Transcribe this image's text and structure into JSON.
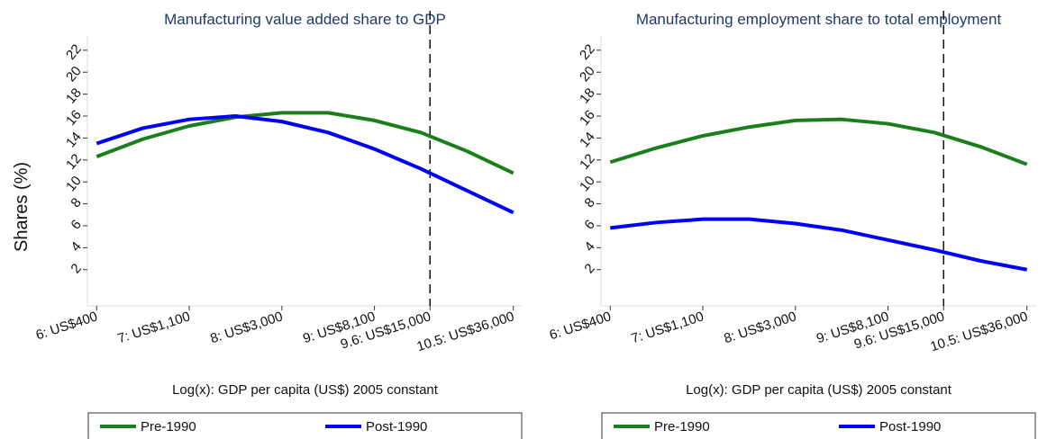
{
  "y_label": "Shares (%)",
  "chart_data": [
    {
      "type": "line",
      "title": "Manufacturing value added share to GDP",
      "xlabel": "Log(x): GDP per capita (US$) 2005 constant",
      "x": [
        6,
        6.5,
        7,
        7.5,
        8,
        8.5,
        9,
        9.5,
        10,
        10.5
      ],
      "series": [
        {
          "name": "Pre-1990",
          "color": "#1a7f1a",
          "values": [
            12.3,
            13.9,
            15.1,
            15.9,
            16.3,
            16.3,
            15.6,
            14.5,
            12.8,
            10.8
          ]
        },
        {
          "name": "Post-1990",
          "color": "#0000ff",
          "values": [
            13.5,
            14.9,
            15.7,
            16.0,
            15.5,
            14.5,
            13.0,
            11.2,
            9.2,
            7.2
          ]
        }
      ],
      "xlim": [
        5.9,
        10.6
      ],
      "ylim": [
        -1.3,
        23.3
      ],
      "xticks": [
        {
          "value": 6,
          "label": "6: US$400"
        },
        {
          "value": 7,
          "label": "7: US$1,100"
        },
        {
          "value": 8,
          "label": "8: US$3,000"
        },
        {
          "value": 9,
          "label": "9: US$8,100"
        },
        {
          "value": 9.6,
          "label": "9.6: US$15,000"
        },
        {
          "value": 10.5,
          "label": "10.5: US$36,000"
        }
      ],
      "yticks": [
        2,
        4,
        6,
        8,
        10,
        12,
        14,
        16,
        18,
        20,
        22
      ],
      "vline": 9.6,
      "legend": "bottom"
    },
    {
      "type": "line",
      "title": "Manufacturing employment share to total employment",
      "xlabel": "Log(x): GDP per capita (US$) 2005 constant",
      "x": [
        6,
        6.5,
        7,
        7.5,
        8,
        8.5,
        9,
        9.5,
        10,
        10.5
      ],
      "series": [
        {
          "name": "Pre-1990",
          "color": "#1a7f1a",
          "values": [
            11.8,
            13.1,
            14.2,
            15.0,
            15.6,
            15.7,
            15.3,
            14.5,
            13.2,
            11.6
          ]
        },
        {
          "name": "Post-1990",
          "color": "#0000ff",
          "values": [
            5.8,
            6.3,
            6.6,
            6.6,
            6.2,
            5.6,
            4.7,
            3.8,
            2.8,
            2.0
          ]
        }
      ],
      "xlim": [
        5.9,
        10.6
      ],
      "ylim": [
        -1.3,
        23.3
      ],
      "xticks": [
        {
          "value": 6,
          "label": "6: US$400"
        },
        {
          "value": 7,
          "label": "7: US$1,100"
        },
        {
          "value": 8,
          "label": "8: US$3,000"
        },
        {
          "value": 9,
          "label": "9: US$8,100"
        },
        {
          "value": 9.6,
          "label": "9.6: US$15,000"
        },
        {
          "value": 10.5,
          "label": "10.5: US$36,000"
        }
      ],
      "yticks": [
        2,
        4,
        6,
        8,
        10,
        12,
        14,
        16,
        18,
        20,
        22
      ],
      "vline": 9.6,
      "legend": "bottom"
    }
  ]
}
